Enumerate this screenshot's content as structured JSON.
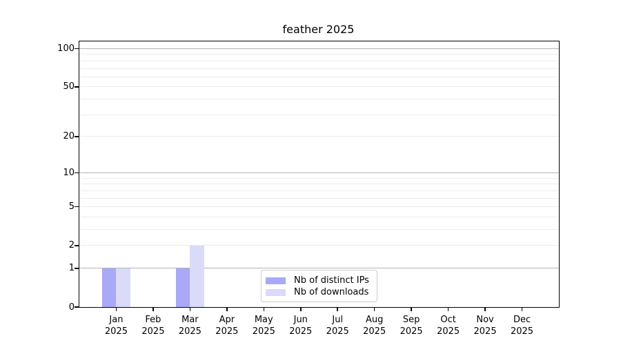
{
  "chart_data": {
    "type": "bar",
    "title": "feather 2025",
    "categories": [
      {
        "month": "Jan",
        "year": "2025"
      },
      {
        "month": "Feb",
        "year": "2025"
      },
      {
        "month": "Mar",
        "year": "2025"
      },
      {
        "month": "Apr",
        "year": "2025"
      },
      {
        "month": "May",
        "year": "2025"
      },
      {
        "month": "Jun",
        "year": "2025"
      },
      {
        "month": "Jul",
        "year": "2025"
      },
      {
        "month": "Aug",
        "year": "2025"
      },
      {
        "month": "Sep",
        "year": "2025"
      },
      {
        "month": "Oct",
        "year": "2025"
      },
      {
        "month": "Nov",
        "year": "2025"
      },
      {
        "month": "Dec",
        "year": "2025"
      }
    ],
    "series": [
      {
        "name": "Nb of distinct IPs",
        "color": "#a9a9f7",
        "values": [
          1,
          0,
          1,
          0,
          0,
          0,
          0,
          0,
          0,
          0,
          0,
          0
        ]
      },
      {
        "name": "Nb of downloads",
        "color": "#dadaf9",
        "values": [
          1,
          0,
          2,
          0,
          0,
          0,
          0,
          0,
          0,
          0,
          0,
          0
        ]
      }
    ],
    "y_axis": {
      "scale": "log10(1+x)",
      "ticks": [
        0,
        1,
        2,
        5,
        10,
        20,
        50,
        100
      ],
      "tick_labels": [
        "0",
        "1",
        "2",
        "5",
        "10",
        "20",
        "50",
        "100"
      ],
      "ylim": [
        0,
        114
      ]
    },
    "grid": {
      "major": [
        1,
        10,
        100
      ],
      "minor": [
        2,
        3,
        4,
        5,
        6,
        7,
        8,
        9,
        20,
        30,
        40,
        50,
        60,
        70,
        80,
        90
      ],
      "major_color": "#b4b4b4",
      "minor_color": "#ebebeb"
    },
    "legend": {
      "position": "lower-center-inside"
    },
    "xlabel": "",
    "ylabel": ""
  }
}
